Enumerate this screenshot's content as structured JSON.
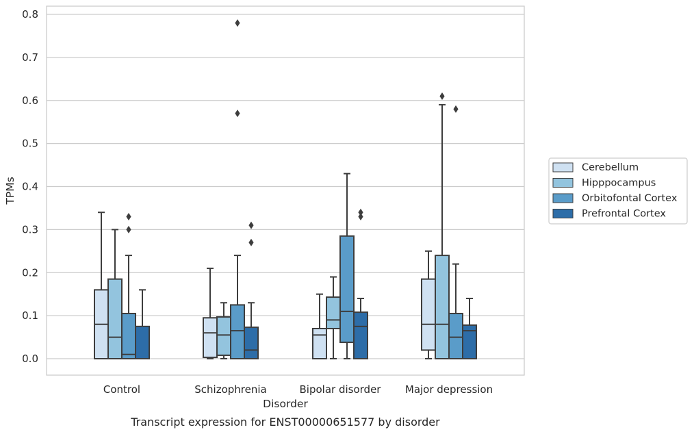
{
  "chart_data": {
    "type": "box",
    "xlabel": "Disorder",
    "ylabel": "TPMs",
    "caption": "Transcript expression for ENST00000651577 by disorder",
    "categories": [
      "Control",
      "Schizophrenia",
      "Bipolar disorder",
      "Major depression"
    ],
    "ylim": [
      -0.04,
      0.82
    ],
    "yticks": [
      "0.0",
      "0.1",
      "0.2",
      "0.3",
      "0.4",
      "0.5",
      "0.6",
      "0.7",
      "0.8"
    ],
    "grid": "horizontal",
    "legend_position": "right",
    "series": [
      {
        "name": "Cerebellum",
        "color": "#cfe1f2",
        "boxes": [
          {
            "whislo": 0.0,
            "q1": 0.0,
            "med": 0.08,
            "q3": 0.16,
            "whishi": 0.34,
            "fliers": []
          },
          {
            "whislo": 0.0,
            "q1": 0.003,
            "med": 0.06,
            "q3": 0.095,
            "whishi": 0.21,
            "fliers": []
          },
          {
            "whislo": 0.0,
            "q1": 0.0,
            "med": 0.055,
            "q3": 0.07,
            "whishi": 0.15,
            "fliers": []
          },
          {
            "whislo": 0.0,
            "q1": 0.02,
            "med": 0.08,
            "q3": 0.185,
            "whishi": 0.25,
            "fliers": []
          }
        ]
      },
      {
        "name": "Hipppocampus",
        "color": "#93c4de",
        "boxes": [
          {
            "whislo": 0.0,
            "q1": 0.0,
            "med": 0.05,
            "q3": 0.185,
            "whishi": 0.3,
            "fliers": []
          },
          {
            "whislo": 0.0,
            "q1": 0.008,
            "med": 0.055,
            "q3": 0.097,
            "whishi": 0.13,
            "fliers": []
          },
          {
            "whislo": 0.0,
            "q1": 0.07,
            "med": 0.09,
            "q3": 0.143,
            "whishi": 0.19,
            "fliers": []
          },
          {
            "whislo": 0.0,
            "q1": 0.0,
            "med": 0.08,
            "q3": 0.24,
            "whishi": 0.59,
            "fliers": [
              0.61
            ]
          }
        ]
      },
      {
        "name": "Orbitofontal Cortex",
        "color": "#5a9cc9",
        "boxes": [
          {
            "whislo": 0.0,
            "q1": 0.0,
            "med": 0.01,
            "q3": 0.105,
            "whishi": 0.24,
            "fliers": [
              0.33,
              0.3
            ]
          },
          {
            "whislo": 0.0,
            "q1": 0.0,
            "med": 0.065,
            "q3": 0.125,
            "whishi": 0.24,
            "fliers": [
              0.78,
              0.57
            ]
          },
          {
            "whislo": 0.0,
            "q1": 0.038,
            "med": 0.11,
            "q3": 0.285,
            "whishi": 0.43,
            "fliers": []
          },
          {
            "whislo": 0.0,
            "q1": 0.0,
            "med": 0.05,
            "q3": 0.105,
            "whishi": 0.22,
            "fliers": [
              0.58
            ]
          }
        ]
      },
      {
        "name": "Prefrontal Cortex",
        "color": "#2d6da8",
        "boxes": [
          {
            "whislo": 0.0,
            "q1": 0.0,
            "med": 0.0,
            "q3": 0.075,
            "whishi": 0.16,
            "fliers": []
          },
          {
            "whislo": 0.0,
            "q1": 0.0,
            "med": 0.02,
            "q3": 0.073,
            "whishi": 0.13,
            "fliers": [
              0.31,
              0.27
            ]
          },
          {
            "whislo": 0.0,
            "q1": 0.0,
            "med": 0.075,
            "q3": 0.108,
            "whishi": 0.14,
            "fliers": [
              0.34,
              0.33
            ]
          },
          {
            "whislo": 0.0,
            "q1": 0.0,
            "med": 0.065,
            "q3": 0.078,
            "whishi": 0.14,
            "fliers": []
          }
        ]
      }
    ]
  }
}
